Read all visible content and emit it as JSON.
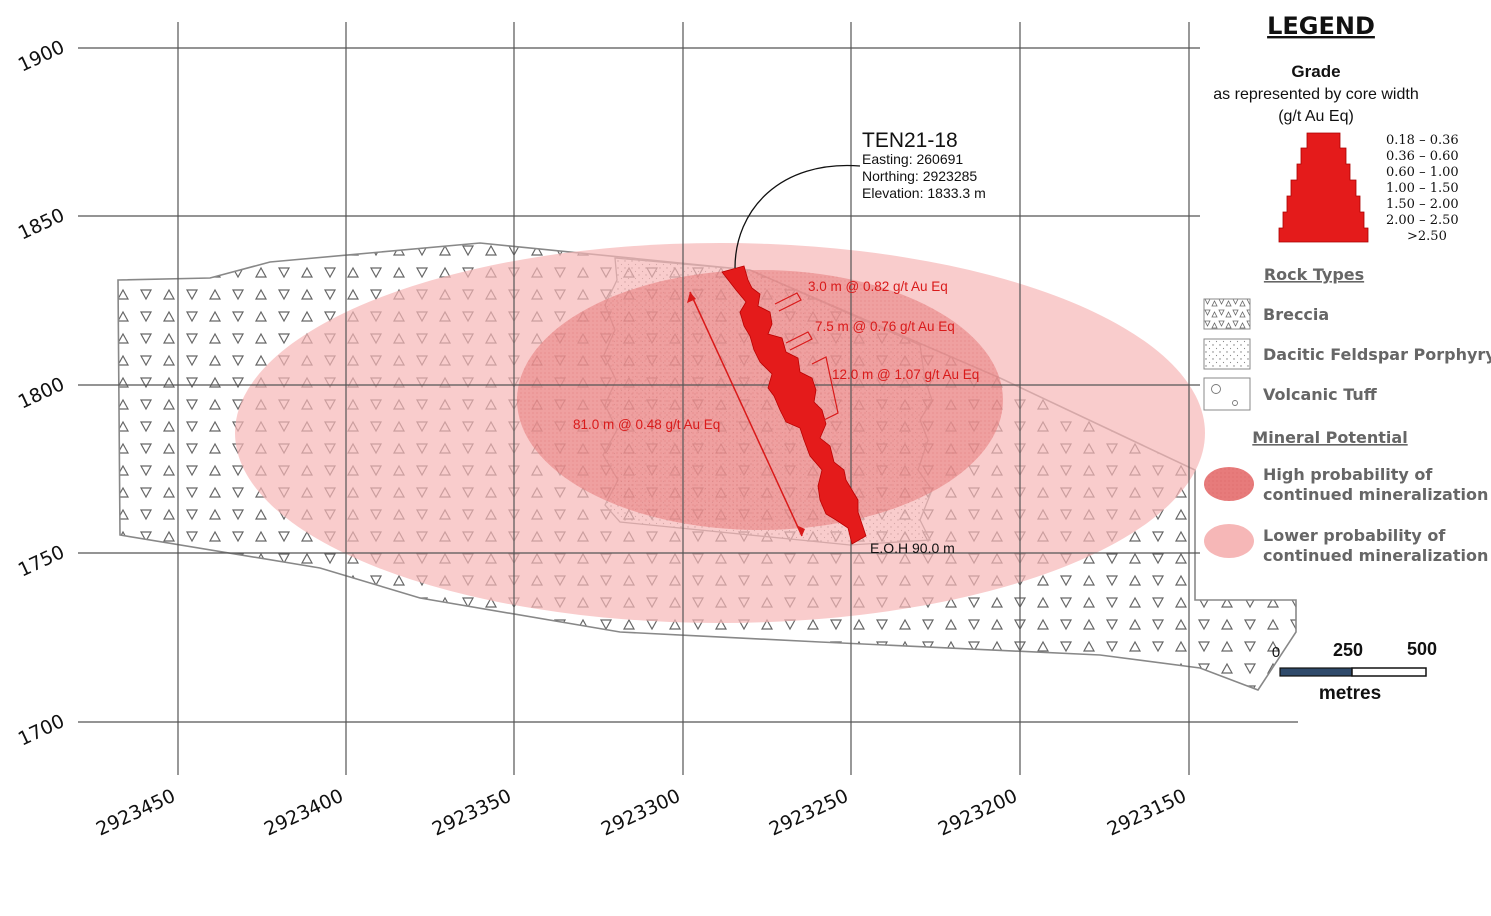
{
  "section": {
    "elevation_ticks": [
      "1900",
      "1850",
      "1800",
      "1750",
      "1700"
    ],
    "northing_ticks": [
      "2923450",
      "2923400",
      "2923350",
      "2923300",
      "2923250",
      "2923200",
      "2923150"
    ]
  },
  "drillhole": {
    "name": "TEN21-18",
    "easting": "Easting: 260691",
    "northing": "Northing: 2923285",
    "elevation": "Elevation: 1833.3 m",
    "eoh": "E.O.H 90.0 m",
    "intercepts": [
      "3.0 m @ 0.82 g/t Au Eq",
      "7.5 m @ 0.76 g/t Au Eq",
      "12.0 m @ 1.07 g/t Au Eq"
    ],
    "overall": "81.0 m @ 0.48 g/t Au Eq"
  },
  "legend": {
    "title": "LEGEND",
    "grade_title": "Grade",
    "grade_sub1": "as represented by core width",
    "grade_sub2": "(g/t Au Eq)",
    "grade_ranges": [
      "0.18 – 0.36",
      "0.36 – 0.60",
      "0.60 – 1.00",
      "1.00 – 1.50",
      "1.50 – 2.00",
      "2.00 – 2.50",
      ">2.50"
    ],
    "rock_types_title": "Rock Types",
    "rock_types": [
      "Breccia",
      "Dacitic Feldspar Porphyry",
      "Volcanic Tuff"
    ],
    "mineral_title": "Mineral Potential",
    "high_line1": "High probability of",
    "high_line2": "continued mineralization",
    "low_line1": "Lower probability of",
    "low_line2": "continued mineralization"
  },
  "scale_bar": {
    "labels": [
      "0",
      "250",
      "500"
    ],
    "unit": "metres"
  },
  "colors": {
    "grid": "#555555",
    "outline": "#888888",
    "high_zone": "#e77b7b",
    "low_zone": "#f6b7b7",
    "core": "#e41b1b",
    "annotation": "#d91a1a"
  }
}
